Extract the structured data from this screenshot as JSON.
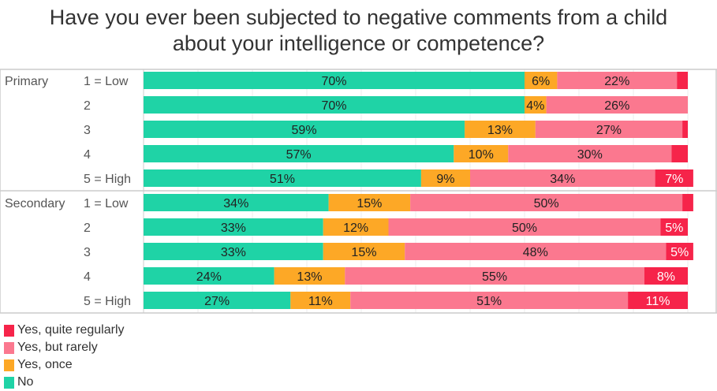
{
  "chart_data": {
    "type": "bar",
    "orientation": "horizontal",
    "stacked": "100%",
    "title_lines": [
      "Have you ever been subjected to negative comments from a child",
      "about your intelligence or competence?"
    ],
    "groups": [
      {
        "name": "Primary",
        "categories": [
          "1 = Low",
          "2",
          "3",
          "4",
          "5 = High"
        ]
      },
      {
        "name": "Secondary",
        "categories": [
          "1 = Low",
          "2",
          "3",
          "4",
          "5 = High"
        ]
      }
    ],
    "series": [
      {
        "name": "No",
        "color": "#1fd3a6",
        "values": [
          70,
          70,
          59,
          57,
          51,
          34,
          33,
          33,
          24,
          27
        ]
      },
      {
        "name": "Yes, once",
        "color": "#fda826",
        "values": [
          6,
          4,
          13,
          10,
          9,
          15,
          12,
          15,
          13,
          11
        ]
      },
      {
        "name": "Yes, but rarely",
        "color": "#fb788f",
        "values": [
          22,
          26,
          27,
          30,
          34,
          50,
          50,
          48,
          55,
          51
        ]
      },
      {
        "name": "Yes, quite regularly",
        "color": "#f6244a",
        "values": [
          2,
          0,
          1,
          3,
          7,
          2,
          5,
          5,
          8,
          11
        ]
      }
    ],
    "legend_order": [
      "Yes, quite regularly",
      "Yes, but rarely",
      "Yes, once",
      "No"
    ],
    "legend_position": "bottom-left",
    "xlim": [
      0,
      100
    ],
    "label_min": 4,
    "label_suffix": "%"
  }
}
